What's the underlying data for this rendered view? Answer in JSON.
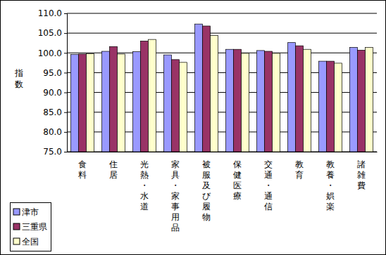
{
  "chart_data": {
    "type": "bar",
    "y_label": "指数",
    "categories": [
      "食料",
      "住居",
      "光熱・水道",
      "家具・家事用品",
      "被服及び履物",
      "保健医療",
      "交通・通信",
      "教育",
      "教養・娯楽",
      "諸雑費"
    ],
    "series": [
      {
        "name": "津市",
        "color": "#9999ff",
        "values": [
          99.6,
          100.4,
          100.3,
          99.5,
          107.3,
          100.9,
          100.6,
          102.6,
          97.9,
          101.4
        ]
      },
      {
        "name": "三重県",
        "color": "#993366",
        "values": [
          99.7,
          101.6,
          103.0,
          98.3,
          106.8,
          100.9,
          100.4,
          101.8,
          97.9,
          100.7
        ]
      },
      {
        "name": "全国",
        "color": "#ffffcc",
        "values": [
          99.8,
          99.7,
          103.4,
          97.6,
          104.4,
          99.9,
          99.9,
          100.9,
          97.4,
          101.4
        ]
      }
    ],
    "ylim": [
      75,
      110
    ],
    "yticks": [
      {
        "value": 75,
        "label": "75.0"
      },
      {
        "value": 80,
        "label": "80.0"
      },
      {
        "value": 85,
        "label": "85.0"
      },
      {
        "value": 90,
        "label": "90.0"
      },
      {
        "value": 95,
        "label": "95.0"
      },
      {
        "value": 100,
        "label": "100.0"
      },
      {
        "value": 105,
        "label": "105.0"
      },
      {
        "value": 110,
        "label": "110.0"
      }
    ],
    "grid": true,
    "legend": "lower left"
  }
}
